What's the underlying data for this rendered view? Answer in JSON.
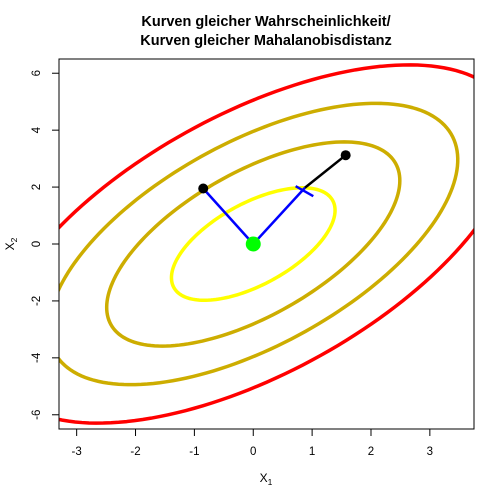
{
  "chart_data": {
    "type": "scatter",
    "title_line1": "Kurven gleicher Wahrscheinlichkeit/",
    "title_line2": "Kurven gleicher Mahalanobisdistanz",
    "xlabel": "X",
    "xlabel_sub": "1",
    "ylabel": "X",
    "ylabel_sub": "2",
    "xlim": [
      -3.3,
      3.75
    ],
    "ylim": [
      -6.5,
      6.5
    ],
    "xticks": [
      -3,
      -2,
      -1,
      0,
      1,
      2,
      3
    ],
    "xtick_labels": [
      "-3",
      "-2",
      "-1",
      "0",
      "1",
      "2",
      "3"
    ],
    "yticks": [
      -6,
      -4,
      -2,
      0,
      2,
      4,
      6
    ],
    "ytick_labels": [
      "-6",
      "-4",
      "-2",
      "0",
      "2",
      "4",
      "6"
    ],
    "grid": false,
    "ellipses": [
      {
        "distance": 1,
        "color": "#FFFF00",
        "major_axis_angle_deg": 60.5,
        "semi_major": 2.2,
        "semi_minor": 1.0
      },
      {
        "distance": 2,
        "color": "#CDAD00",
        "major_axis_angle_deg": 60.5,
        "semi_major": 4.0,
        "semi_minor": 1.75
      },
      {
        "distance": 3,
        "color": "#CDAD00",
        "major_axis_angle_deg": 60.5,
        "semi_major": 5.5,
        "semi_minor": 2.5
      },
      {
        "distance": 4,
        "color": "#FF0000",
        "major_axis_angle_deg": 60.5,
        "semi_major": 7.0,
        "semi_minor": 3.2
      }
    ],
    "center": {
      "x": 0,
      "y": 0,
      "color": "#00FF00"
    },
    "points": [
      {
        "x": -0.85,
        "y": 1.95,
        "color": "#000000"
      },
      {
        "x": 1.57,
        "y": 3.12,
        "color": "#000000"
      }
    ],
    "segments": [
      {
        "from": [
          0,
          0
        ],
        "to": [
          -0.85,
          1.95
        ],
        "color": "#0000FF"
      },
      {
        "from": [
          0,
          0
        ],
        "to": [
          0.88,
          1.98
        ],
        "color": "#0000FF"
      },
      {
        "from": [
          0.88,
          1.98
        ],
        "to": [
          1.57,
          3.12
        ],
        "color": "#000000"
      },
      {
        "from": [
          0.72,
          2.03
        ],
        "to": [
          1.02,
          1.68
        ],
        "color": "#0000FF"
      }
    ]
  }
}
